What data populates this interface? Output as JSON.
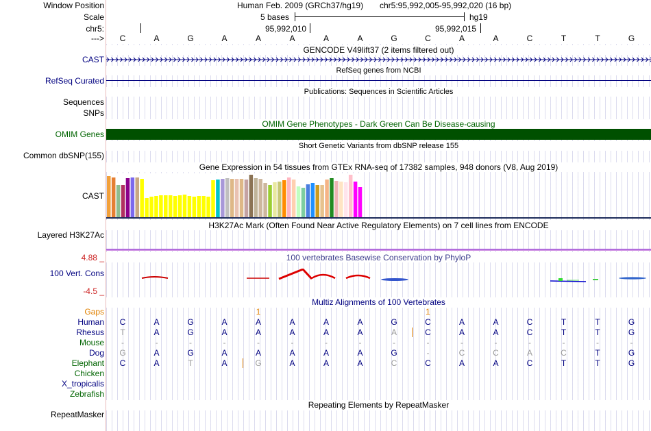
{
  "labels": {
    "window_position": "Window Position",
    "scale": "Scale",
    "chr": "chr5:",
    "strand": "--->",
    "cast": "CAST",
    "refseq": "RefSeq Curated",
    "sequences": "Sequences",
    "snps": "SNPs",
    "omim": "OMIM Genes",
    "dbsnp": "Common dbSNP(155)",
    "gtex": "CAST",
    "h3k27ac": "Layered H3K27Ac",
    "cons_max": "4.88 _",
    "cons": "100 Vert. Cons",
    "cons_min": "-4.5 _",
    "gaps": "Gaps",
    "human": "Human",
    "rhesus": "Rhesus",
    "mouse": "Mouse",
    "dog": "Dog",
    "elephant": "Elephant",
    "chicken": "Chicken",
    "xtrop": "X_tropicalis",
    "zebrafish": "Zebrafish",
    "repeatmasker": "RepeatMasker"
  },
  "header": {
    "assembly": "Human Feb. 2009 (GRCh37/hg19)",
    "position": "chr5:95,992,005-95,992,020 (16 bp)",
    "scale_text": "5 bases",
    "scale_db": "hg19",
    "tick1": "95,992,010",
    "tick2": "95,992,015",
    "ref_bases": [
      "C",
      "A",
      "G",
      "A",
      "A",
      "A",
      "A",
      "A",
      "G",
      "C",
      "A",
      "A",
      "C",
      "T",
      "T",
      "G"
    ]
  },
  "tracks": {
    "gencode": "GENCODE V49lift37 (2 items filtered out)",
    "refseq": "RefSeq genes from NCBI",
    "publications": "Publications: Sequences in Scientific Articles",
    "omim": "OMIM Gene Phenotypes - Dark Green Can Be Disease-causing",
    "dbsnp": "Short Genetic Variants from dbSNP release 155",
    "gtex": "Gene Expression in 54 tissues from GTEx RNA-seq of 17382 samples, 948 donors (V8, Aug 2019)",
    "h3k27ac": "H3K27Ac Mark (Often Found Near Active Regulatory Elements) on 7 cell lines from ENCODE",
    "cons": "100 vertebrates Basewise Conservation by PhyloP",
    "multiz": "Multiz Alignments of 100 Vertebrates",
    "rmsk": "Repeating Elements by RepeatMasker"
  },
  "alignment": {
    "gaps": [
      "",
      "",
      "",
      "",
      "1",
      "",
      "",
      "",
      "",
      "1",
      "",
      "",
      "",
      "",
      "",
      ""
    ],
    "human": [
      "C",
      "A",
      "G",
      "A",
      "A",
      "A",
      "A",
      "A",
      "G",
      "C",
      "A",
      "A",
      "C",
      "T",
      "T",
      "G"
    ],
    "rhesus": [
      "T",
      "A",
      "G",
      "A",
      "A",
      "A",
      "A",
      "A",
      "A",
      "C",
      "A",
      "A",
      "C",
      "T",
      "T",
      "G"
    ],
    "mouse": [
      "-",
      "-",
      "-",
      "-",
      "-",
      "-",
      "-",
      "-",
      "-",
      "-",
      "-",
      "-",
      "-",
      "-",
      "-",
      "-"
    ],
    "dog": [
      "G",
      "A",
      "G",
      "A",
      "A",
      "A",
      "A",
      "A",
      "G",
      "-",
      "C",
      "C",
      "A",
      "C",
      "T",
      "G"
    ],
    "elephant": [
      "C",
      "A",
      "T",
      "A",
      "G",
      "A",
      "A",
      "A",
      "C",
      "C",
      "A",
      "A",
      "C",
      "T",
      "T",
      "G"
    ]
  },
  "gtex_chart": {
    "type": "bar",
    "values": [
      60,
      58,
      47,
      47,
      57,
      58,
      58,
      56,
      28,
      30,
      31,
      32,
      32,
      32,
      31,
      32,
      33,
      31,
      30,
      31,
      31,
      30,
      54,
      55,
      56,
      57,
      56,
      56,
      56,
      55,
      62,
      57,
      56,
      50,
      47,
      51,
      52,
      54,
      58,
      55,
      45,
      43,
      48,
      50,
      47,
      47,
      55,
      57,
      53,
      52,
      51,
      62,
      52,
      44
    ],
    "colors": [
      "#f2a03a",
      "#e57f33",
      "#8fbc8f",
      "#b03060",
      "#8b008b",
      "#7b68ee",
      "#c8a784",
      "#ffff00",
      "#ffff00",
      "#ffff00",
      "#ffff00",
      "#ffff00",
      "#ffff00",
      "#ffff00",
      "#ffff00",
      "#ffff00",
      "#ffff00",
      "#ffff00",
      "#ffff00",
      "#ffff00",
      "#ffff00",
      "#ffff00",
      "#ffff00",
      "#00c5cd",
      "#a898d8",
      "#bfbfbf",
      "#deb887",
      "#e9c2b2",
      "#deb887",
      "#c5a3a3",
      "#8b7355",
      "#c0b49a",
      "#cdb79e",
      "#cdb79e",
      "#9acd32",
      "#e8e8a0",
      "#c8c878",
      "#ff8c00",
      "#ffb6c1",
      "#ffd0b0",
      "#c1ffc1",
      "#7dcea0",
      "#4a7fe0",
      "#1e90ff",
      "#cd9b1d",
      "#e7c28d",
      "#f5b486",
      "#228b22",
      "#eeb4b4",
      "#ffe4c4",
      "#ffe4ec",
      "#ffc0cb",
      "#ff00ff",
      "#ff00ff"
    ]
  }
}
